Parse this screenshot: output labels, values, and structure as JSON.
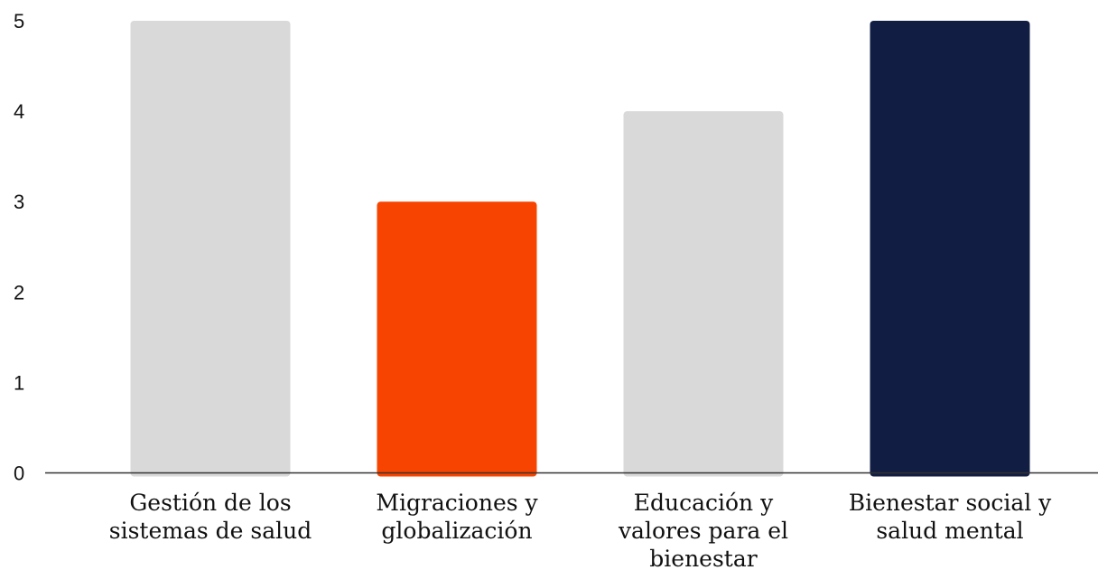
{
  "chart_data": {
    "type": "bar",
    "title": "",
    "xlabel": "",
    "ylabel": "",
    "ylim": [
      0,
      5
    ],
    "yticks": [
      "0",
      "1",
      "2",
      "3",
      "4",
      "5"
    ],
    "grid": false,
    "legend": "none",
    "categories": [
      [
        "Gestión de los",
        "sistemas de salud"
      ],
      [
        "Migraciones y",
        "globalización"
      ],
      [
        "Educación y",
        "valores para el",
        "bienestar"
      ],
      [
        "Bienestar social y",
        "salud mental"
      ]
    ],
    "values": [
      5,
      3,
      4,
      5
    ],
    "colors": [
      "#d9d9d9",
      "#f74400",
      "#d9d9d9",
      "#111d42"
    ],
    "axis_color": "#333333"
  }
}
